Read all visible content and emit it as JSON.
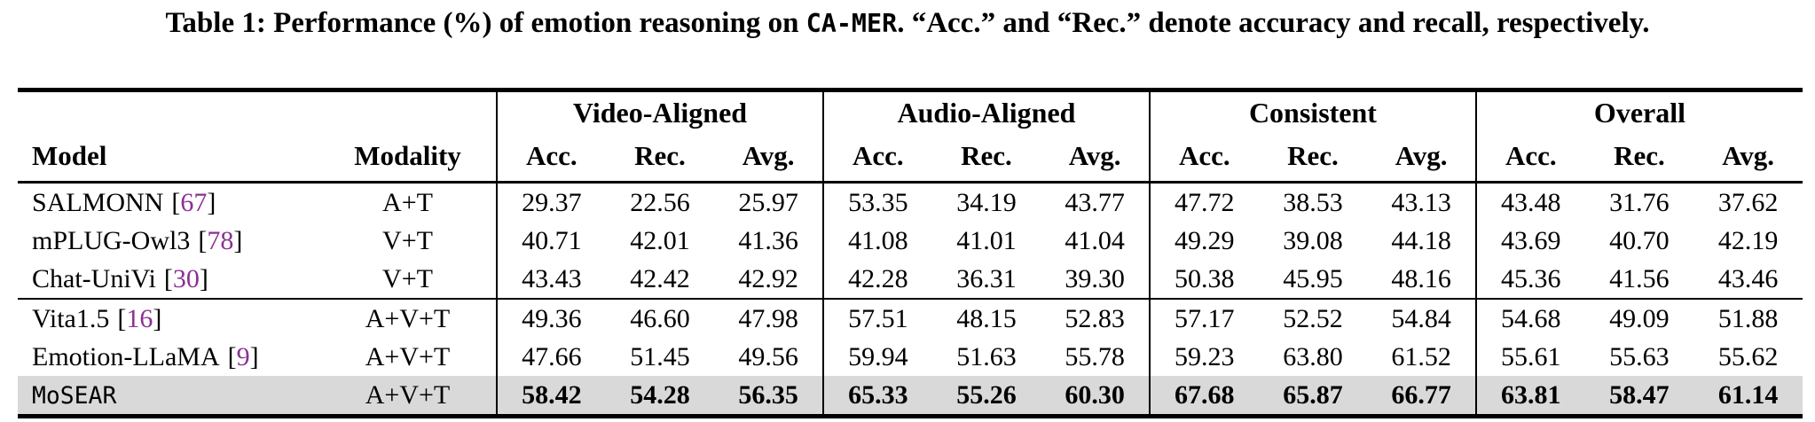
{
  "caption": {
    "prefix": "Table 1: Performance (%) of emotion reasoning on ",
    "dataset": "CA-MER",
    "suffix": ". “Acc.” and “Rec.” denote accuracy and recall, respectively."
  },
  "table": {
    "col_headers": {
      "model": "Model",
      "modality": "Modality"
    },
    "groups": [
      {
        "label": "Video-Aligned"
      },
      {
        "label": "Audio-Aligned"
      },
      {
        "label": "Consistent"
      },
      {
        "label": "Overall"
      }
    ],
    "sub_headers": [
      "Acc.",
      "Rec.",
      "Avg."
    ],
    "cite_brackets": [
      "[",
      "]"
    ],
    "rows": [
      {
        "model": "SALMONN",
        "cite": "67",
        "modality": "A+T",
        "highlight": false,
        "mono": false,
        "values": [
          "29.37",
          "22.56",
          "25.97",
          "53.35",
          "34.19",
          "43.77",
          "47.72",
          "38.53",
          "43.13",
          "43.48",
          "31.76",
          "37.62"
        ]
      },
      {
        "model": "mPLUG-Owl3",
        "cite": "78",
        "modality": "V+T",
        "highlight": false,
        "mono": false,
        "values": [
          "40.71",
          "42.01",
          "41.36",
          "41.08",
          "41.01",
          "41.04",
          "49.29",
          "39.08",
          "44.18",
          "43.69",
          "40.70",
          "42.19"
        ]
      },
      {
        "model": "Chat-UniVi",
        "cite": "30",
        "modality": "V+T",
        "highlight": false,
        "mono": false,
        "values": [
          "43.43",
          "42.42",
          "42.92",
          "42.28",
          "36.31",
          "39.30",
          "50.38",
          "45.95",
          "48.16",
          "45.36",
          "41.56",
          "43.46"
        ]
      },
      {
        "model": "Vita1.5",
        "cite": "16",
        "modality": "A+V+T",
        "highlight": false,
        "mono": false,
        "values": [
          "49.36",
          "46.60",
          "47.98",
          "57.51",
          "48.15",
          "52.83",
          "57.17",
          "52.52",
          "54.84",
          "54.68",
          "49.09",
          "51.88"
        ]
      },
      {
        "model": "Emotion-LLaMA",
        "cite": "9",
        "modality": "A+V+T",
        "highlight": false,
        "mono": false,
        "values": [
          "47.66",
          "51.45",
          "49.56",
          "59.94",
          "51.63",
          "55.78",
          "59.23",
          "63.80",
          "61.52",
          "55.61",
          "55.63",
          "55.62"
        ]
      },
      {
        "model": "MoSEAR",
        "cite": null,
        "modality": "A+V+T",
        "highlight": true,
        "mono": true,
        "values": [
          "58.42",
          "54.28",
          "56.35",
          "65.33",
          "55.26",
          "60.30",
          "67.68",
          "65.87",
          "66.77",
          "63.81",
          "58.47",
          "61.14"
        ]
      }
    ]
  },
  "colors": {
    "citation": "#8b3094",
    "highlight_row": "#d9d9d9",
    "rule": "#000000"
  }
}
